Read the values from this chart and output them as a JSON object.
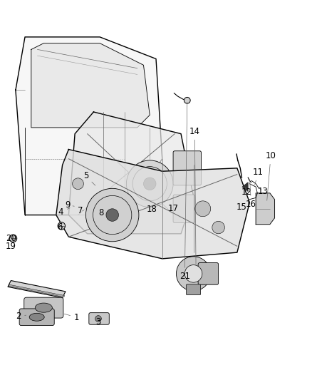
{
  "title": "",
  "background_color": "#ffffff",
  "line_color": "#000000",
  "label_color": "#000000",
  "fig_width": 4.38,
  "fig_height": 5.33,
  "dpi": 100,
  "label_fontsize": 8.5,
  "gray_light": "#d0d0d0",
  "gray_dark": "#555555",
  "gray_mid": "#888888"
}
